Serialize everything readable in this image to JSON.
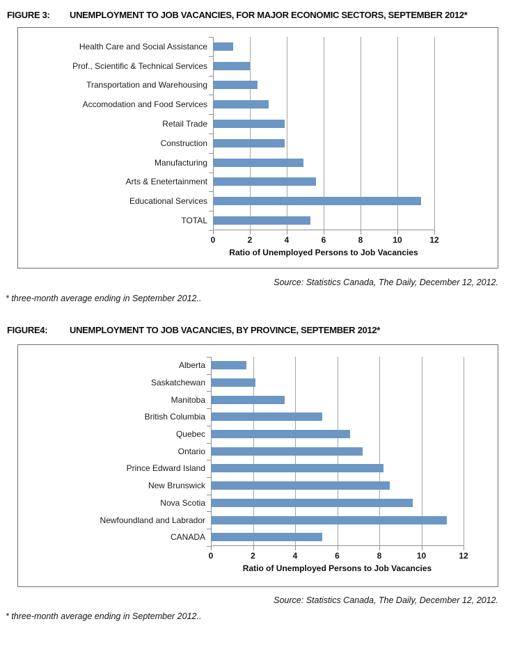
{
  "figure3": {
    "label": "FIGURE 3:",
    "title": "UNEMPLOYMENT TO JOB VACANCIES, FOR MAJOR ECONOMIC SECTORS, SEPTEMBER 2012*",
    "source": "Source: Statistics Canada, The Daily, December 12, 2012.",
    "footnote": "* three-month average ending in September 2012.."
  },
  "figure4": {
    "label": "FIGURE4:",
    "title": "UNEMPLOYMENT TO JOB VACANCIES, BY PROVINCE, SEPTEMBER 2012*",
    "source": "Source: Statistics Canada, The Daily, December 12, 2012.",
    "footnote": "* three-month average ending in September 2012.."
  },
  "chart_data": [
    {
      "type": "bar",
      "orientation": "horizontal",
      "title": "UNEMPLOYMENT TO JOB VACANCIES, FOR MAJOR ECONOMIC SECTORS, SEPTEMBER 2012*",
      "categories": [
        "Health Care and Social Assistance",
        "Prof., Scientific & Technical Services",
        "Transportation and Warehousing",
        "Accomodation and Food Services",
        "Retail Trade",
        "Construction",
        "Manufacturing",
        "Arts & Enetertainment",
        "Educational Services",
        "TOTAL"
      ],
      "values": [
        1.1,
        2.0,
        2.4,
        3.0,
        3.9,
        3.9,
        4.9,
        5.6,
        11.3,
        5.3
      ],
      "xlabel": "Ratio of Unemployed Persons to Job Vacancies",
      "xticks": [
        0,
        2,
        4,
        6,
        8,
        10,
        12
      ],
      "xlim": [
        0,
        12
      ],
      "grid": true,
      "legend": false,
      "bar_color": "#6C96C4"
    },
    {
      "type": "bar",
      "orientation": "horizontal",
      "title": "UNEMPLOYMENT TO JOB VACANCIES, BY PROVINCE, SEPTEMBER 2012*",
      "categories": [
        "Alberta",
        "Saskatchewan",
        "Manitoba",
        "British Columbia",
        "Quebec",
        "Ontario",
        "Prince Edward Island",
        "New Brunswick",
        "Nova Scotia",
        "Newfoundland and Labrador",
        "CANADA"
      ],
      "values": [
        1.7,
        2.1,
        3.5,
        5.3,
        6.6,
        7.2,
        8.2,
        8.5,
        9.6,
        11.2,
        5.3
      ],
      "xlabel": "Ratio of Unemployed Persons to Job Vacancies",
      "xticks": [
        0,
        2,
        4,
        6,
        8,
        10,
        12
      ],
      "xlim": [
        0,
        12
      ],
      "grid": true,
      "legend": false,
      "bar_color": "#6C96C4"
    }
  ]
}
